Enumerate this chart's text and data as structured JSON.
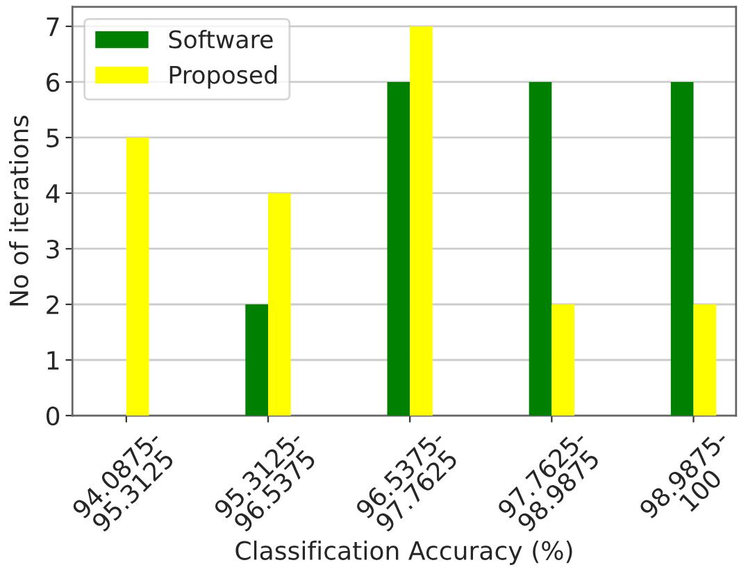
{
  "chart_data": {
    "type": "bar",
    "xlabel": "Classification Accuracy (%)",
    "ylabel": "No of iterations",
    "categories": [
      "94.0875-\n95.3125",
      "95.3125-\n96.5375",
      "96.5375-\n97.7625",
      "97.7625-\n98.9875",
      "98.9875-\n100"
    ],
    "series": [
      {
        "name": "Software",
        "color": "#008000",
        "values": [
          0,
          2,
          6,
          6,
          6
        ]
      },
      {
        "name": "Proposed",
        "color": "#ffff00",
        "values": [
          5,
          4,
          7,
          2,
          2
        ]
      }
    ],
    "ylim": [
      0,
      7.35
    ],
    "yticks": [
      0,
      1,
      2,
      3,
      4,
      5,
      6,
      7
    ],
    "grid": "y",
    "legend": "top left"
  }
}
